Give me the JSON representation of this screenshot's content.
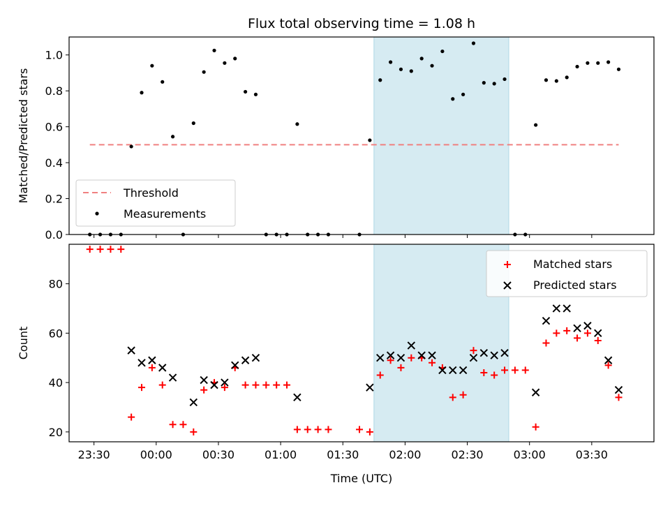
{
  "title": "Flux total observing time = 1.08 h",
  "colors": {
    "threshold": "#f08080",
    "matched": "#ff0000",
    "predicted": "#000000",
    "shade": "#add8e6"
  },
  "chart_data": [
    {
      "type": "scatter",
      "ylabel": "Matched/Predicted stars",
      "xlim": [
        "23:18",
        "04:00"
      ],
      "ylim": [
        0,
        1.1
      ],
      "yticks": [
        "0.0",
        "0.2",
        "0.4",
        "0.6",
        "0.8",
        "1.0"
      ],
      "shaded_interval": [
        "01:45",
        "02:50"
      ],
      "legend_position": "lower-left",
      "threshold": {
        "name": "Threshold",
        "value": 0.5,
        "x_range": [
          "23:28",
          "03:43"
        ]
      },
      "series": [
        {
          "name": "Measurements",
          "points": [
            [
              "23:28",
              0.0
            ],
            [
              "23:33",
              0.0
            ],
            [
              "23:38",
              0.0
            ],
            [
              "23:43",
              0.0
            ],
            [
              "23:48",
              0.49
            ],
            [
              "23:53",
              0.79
            ],
            [
              "23:58",
              0.94
            ],
            [
              "00:03",
              0.85
            ],
            [
              "00:08",
              0.545
            ],
            [
              "00:13",
              0.0
            ],
            [
              "00:18",
              0.62
            ],
            [
              "00:23",
              0.905
            ],
            [
              "00:28",
              1.025
            ],
            [
              "00:33",
              0.955
            ],
            [
              "00:38",
              0.98
            ],
            [
              "00:43",
              0.795
            ],
            [
              "00:48",
              0.78
            ],
            [
              "00:53",
              0.0
            ],
            [
              "00:58",
              0.0
            ],
            [
              "01:03",
              0.0
            ],
            [
              "01:08",
              0.615
            ],
            [
              "01:13",
              0.0
            ],
            [
              "01:18",
              0.0
            ],
            [
              "01:23",
              0.0
            ],
            [
              "01:38",
              0.0
            ],
            [
              "01:43",
              0.525
            ],
            [
              "01:48",
              0.86
            ],
            [
              "01:53",
              0.96
            ],
            [
              "01:58",
              0.92
            ],
            [
              "02:03",
              0.91
            ],
            [
              "02:08",
              0.98
            ],
            [
              "02:13",
              0.94
            ],
            [
              "02:18",
              1.02
            ],
            [
              "02:23",
              0.755
            ],
            [
              "02:28",
              0.78
            ],
            [
              "02:33",
              1.065
            ],
            [
              "02:38",
              0.845
            ],
            [
              "02:43",
              0.84
            ],
            [
              "02:48",
              0.865
            ],
            [
              "02:53",
              0.0
            ],
            [
              "02:58",
              0.0
            ],
            [
              "03:03",
              0.61
            ],
            [
              "03:08",
              0.86
            ],
            [
              "03:13",
              0.855
            ],
            [
              "03:18",
              0.875
            ],
            [
              "03:23",
              0.935
            ],
            [
              "03:28",
              0.955
            ],
            [
              "03:33",
              0.955
            ],
            [
              "03:38",
              0.96
            ],
            [
              "03:43",
              0.92
            ]
          ]
        }
      ]
    },
    {
      "type": "scatter",
      "ylabel": "Count",
      "xlabel": "Time (UTC)",
      "xlim": [
        "23:18",
        "04:00"
      ],
      "ylim": [
        16,
        96
      ],
      "yticks": [
        "20",
        "40",
        "60",
        "80"
      ],
      "xticks": [
        "23:30",
        "00:00",
        "00:30",
        "01:00",
        "01:30",
        "02:00",
        "02:30",
        "03:00",
        "03:30"
      ],
      "shaded_interval": [
        "01:45",
        "02:50"
      ],
      "legend_position": "upper-right",
      "series": [
        {
          "name": "Matched stars",
          "marker": "plus",
          "points": [
            [
              "23:28",
              94
            ],
            [
              "23:33",
              94
            ],
            [
              "23:38",
              94
            ],
            [
              "23:43",
              94
            ],
            [
              "23:48",
              26
            ],
            [
              "23:53",
              38
            ],
            [
              "23:58",
              46
            ],
            [
              "00:03",
              39
            ],
            [
              "00:08",
              23
            ],
            [
              "00:13",
              23
            ],
            [
              "00:18",
              20
            ],
            [
              "00:23",
              37
            ],
            [
              "00:28",
              40
            ],
            [
              "00:33",
              38
            ],
            [
              "00:38",
              46
            ],
            [
              "00:43",
              39
            ],
            [
              "00:48",
              39
            ],
            [
              "00:53",
              39
            ],
            [
              "00:58",
              39
            ],
            [
              "01:03",
              39
            ],
            [
              "01:08",
              21
            ],
            [
              "01:13",
              21
            ],
            [
              "01:18",
              21
            ],
            [
              "01:23",
              21
            ],
            [
              "01:38",
              21
            ],
            [
              "01:43",
              20
            ],
            [
              "01:48",
              43
            ],
            [
              "01:53",
              49
            ],
            [
              "01:58",
              46
            ],
            [
              "02:03",
              50
            ],
            [
              "02:08",
              50
            ],
            [
              "02:13",
              48
            ],
            [
              "02:18",
              46
            ],
            [
              "02:23",
              34
            ],
            [
              "02:28",
              35
            ],
            [
              "02:33",
              53
            ],
            [
              "02:38",
              44
            ],
            [
              "02:43",
              43
            ],
            [
              "02:48",
              45
            ],
            [
              "02:53",
              45
            ],
            [
              "02:58",
              45
            ],
            [
              "03:03",
              22
            ],
            [
              "03:08",
              56
            ],
            [
              "03:13",
              60
            ],
            [
              "03:18",
              61
            ],
            [
              "03:23",
              58
            ],
            [
              "03:28",
              60
            ],
            [
              "03:33",
              57
            ],
            [
              "03:38",
              47
            ],
            [
              "03:43",
              34
            ]
          ]
        },
        {
          "name": "Predicted stars",
          "marker": "x",
          "points": [
            [
              "23:48",
              53
            ],
            [
              "23:53",
              48
            ],
            [
              "23:58",
              49
            ],
            [
              "00:03",
              46
            ],
            [
              "00:08",
              42
            ],
            [
              "00:18",
              32
            ],
            [
              "00:23",
              41
            ],
            [
              "00:28",
              39
            ],
            [
              "00:33",
              40
            ],
            [
              "00:38",
              47
            ],
            [
              "00:43",
              49
            ],
            [
              "00:48",
              50
            ],
            [
              "01:08",
              34
            ],
            [
              "01:43",
              38
            ],
            [
              "01:48",
              50
            ],
            [
              "01:53",
              51
            ],
            [
              "01:58",
              50
            ],
            [
              "02:03",
              55
            ],
            [
              "02:08",
              51
            ],
            [
              "02:13",
              51
            ],
            [
              "02:18",
              45
            ],
            [
              "02:23",
              45
            ],
            [
              "02:28",
              45
            ],
            [
              "02:33",
              50
            ],
            [
              "02:38",
              52
            ],
            [
              "02:43",
              51
            ],
            [
              "02:48",
              52
            ],
            [
              "03:03",
              36
            ],
            [
              "03:08",
              65
            ],
            [
              "03:13",
              70
            ],
            [
              "03:18",
              70
            ],
            [
              "03:23",
              62
            ],
            [
              "03:28",
              63
            ],
            [
              "03:33",
              60
            ],
            [
              "03:38",
              49
            ],
            [
              "03:43",
              37
            ]
          ]
        }
      ]
    }
  ]
}
